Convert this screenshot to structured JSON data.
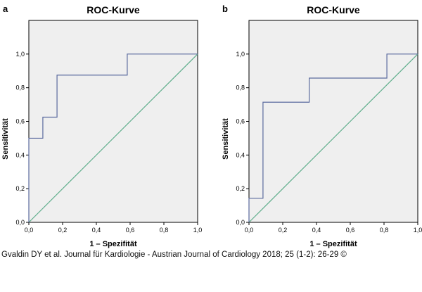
{
  "chart_data": [
    {
      "type": "line",
      "panel": "a",
      "title": "ROC-Kurve",
      "xlabel": "1 – Spezifität",
      "ylabel": "Sensitivität",
      "xlim": [
        0,
        1
      ],
      "ylim": [
        0,
        1.2
      ],
      "xticks": [
        "0,0",
        "0,2",
        "0,4",
        "0,6",
        "0,8",
        "1,0"
      ],
      "yticks": [
        "0,0",
        "0,2",
        "0,4",
        "0,6",
        "0,8",
        "1,0"
      ],
      "series": [
        {
          "name": "ROC",
          "color": "#5a6a9e",
          "x": [
            0,
            0,
            0.083,
            0.083,
            0.167,
            0.167,
            0.583,
            0.583,
            1.0
          ],
          "y": [
            0,
            0.5,
            0.5,
            0.625,
            0.625,
            0.875,
            0.875,
            1.0,
            1.0
          ]
        },
        {
          "name": "Referenzlinie",
          "color": "#5fae8c",
          "x": [
            0,
            1
          ],
          "y": [
            0,
            1
          ]
        }
      ]
    },
    {
      "type": "line",
      "panel": "b",
      "title": "ROC-Kurve",
      "xlabel": "1 – Spezifität",
      "ylabel": "Sensitivität",
      "xlim": [
        0,
        1
      ],
      "ylim": [
        0,
        1.2
      ],
      "xticks": [
        "0,0",
        "0,2",
        "0,4",
        "0,6",
        "0,8",
        "1,0"
      ],
      "yticks": [
        "0,0",
        "0,2",
        "0,4",
        "0,6",
        "0,8",
        "1,0"
      ],
      "series": [
        {
          "name": "ROC",
          "color": "#5a6a9e",
          "x": [
            0,
            0,
            0.083,
            0.083,
            0.357,
            0.357,
            0.817,
            0.817,
            1.0
          ],
          "y": [
            0,
            0.143,
            0.143,
            0.714,
            0.714,
            0.857,
            0.857,
            1.0,
            1.0
          ]
        },
        {
          "name": "Referenzlinie",
          "color": "#5fae8c",
          "x": [
            0,
            1
          ],
          "y": [
            0,
            1
          ]
        }
      ]
    }
  ],
  "caption": "Gvaldin DY et al. Journal für Kardiologie - Austrian Journal of Cardiology 2018; 25 (1-2): 26-29 ©",
  "colors": {
    "plot_background": "#efefef",
    "frame": "#000000"
  }
}
